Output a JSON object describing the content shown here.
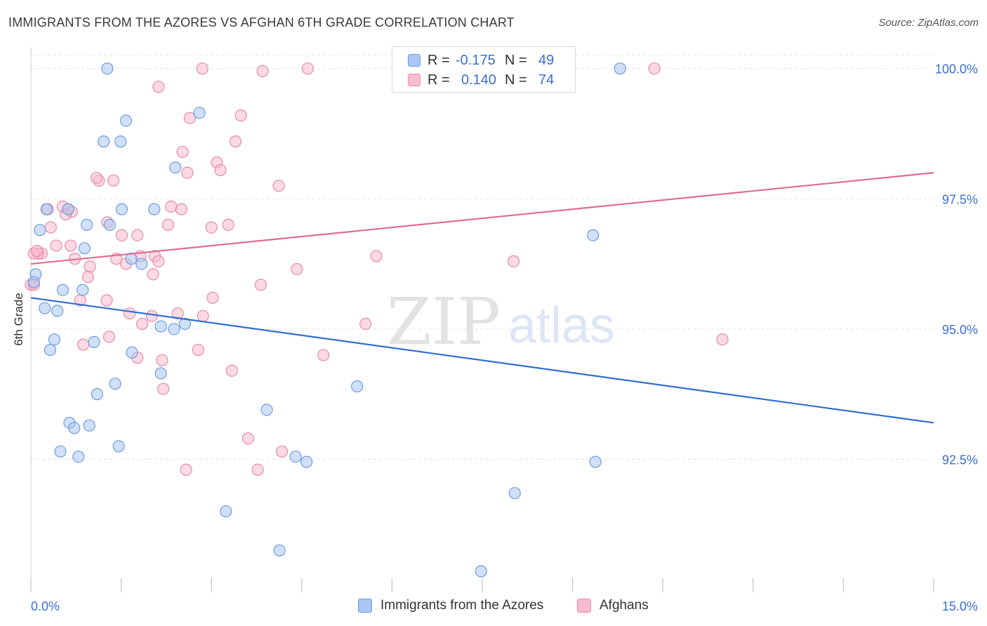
{
  "header": {
    "title": "IMMIGRANTS FROM THE AZORES VS AFGHAN 6TH GRADE CORRELATION CHART",
    "source": "Source: ZipAtlas.com"
  },
  "watermark": {
    "zip": "ZIP",
    "atlas": "atlas"
  },
  "legend": {
    "rows": [
      {
        "r_label": "R =",
        "r_value": "-0.175",
        "n_label": "N =",
        "n_value": "49",
        "color": "#a9c7f2",
        "border": "#6f9be0"
      },
      {
        "r_label": "R =",
        "r_value": "0.140",
        "n_label": "N =",
        "n_value": "74",
        "color": "#f7bccd",
        "border": "#e88aa8"
      }
    ],
    "bottom": [
      {
        "label": "Immigrants from the Azores",
        "color": "#a9c7f2",
        "border": "#6f9be0"
      },
      {
        "label": "Afghans",
        "color": "#f7bccd",
        "border": "#e88aa8"
      }
    ]
  },
  "chart_data": {
    "type": "scatter",
    "title": "IMMIGRANTS FROM THE AZORES VS AFGHAN 6TH GRADE CORRELATION CHART",
    "xlabel": "",
    "ylabel": "6th Grade",
    "xlim": [
      0,
      15
    ],
    "ylim": [
      90.0,
      100.4
    ],
    "x_tick_labels": [
      "0.0%",
      "15.0%"
    ],
    "y_ticks": [
      92.5,
      95.0,
      97.5,
      100.0
    ],
    "y_tick_labels": [
      "92.5%",
      "95.0%",
      "97.5%",
      "100.0%"
    ],
    "grid": true,
    "series": [
      {
        "name": "Immigrants from the Azores",
        "color": "#a9c7f2",
        "edge": "#6f9be0",
        "line_color": "#2f6fd0",
        "trend": {
          "x": [
            0.0,
            15.0
          ],
          "y": [
            95.6,
            93.2
          ]
        },
        "points": [
          [
            1.27,
            100.0
          ],
          [
            9.79,
            100.0
          ],
          [
            1.58,
            99.0
          ],
          [
            2.8,
            99.15
          ],
          [
            1.21,
            98.6
          ],
          [
            1.49,
            98.6
          ],
          [
            2.4,
            98.1
          ],
          [
            0.26,
            97.3
          ],
          [
            0.62,
            97.3
          ],
          [
            1.51,
            97.3
          ],
          [
            2.05,
            97.3
          ],
          [
            0.93,
            97.0
          ],
          [
            1.31,
            97.0
          ],
          [
            0.15,
            96.9
          ],
          [
            9.34,
            96.8
          ],
          [
            0.89,
            96.55
          ],
          [
            1.67,
            96.35
          ],
          [
            1.84,
            96.25
          ],
          [
            0.08,
            96.05
          ],
          [
            0.05,
            95.9
          ],
          [
            0.53,
            95.75
          ],
          [
            0.86,
            95.75
          ],
          [
            0.23,
            95.4
          ],
          [
            0.44,
            95.35
          ],
          [
            2.56,
            95.1
          ],
          [
            2.16,
            95.05
          ],
          [
            2.38,
            95.0
          ],
          [
            0.39,
            94.8
          ],
          [
            1.05,
            94.75
          ],
          [
            0.32,
            94.6
          ],
          [
            1.68,
            94.55
          ],
          [
            2.16,
            94.15
          ],
          [
            1.4,
            93.95
          ],
          [
            1.1,
            93.75
          ],
          [
            5.42,
            93.9
          ],
          [
            3.92,
            93.45
          ],
          [
            0.64,
            93.2
          ],
          [
            0.72,
            93.1
          ],
          [
            0.97,
            93.15
          ],
          [
            1.46,
            92.75
          ],
          [
            0.49,
            92.65
          ],
          [
            0.79,
            92.55
          ],
          [
            4.4,
            92.55
          ],
          [
            4.58,
            92.45
          ],
          [
            9.38,
            92.45
          ],
          [
            8.04,
            91.85
          ],
          [
            3.24,
            91.5
          ],
          [
            4.13,
            90.75
          ],
          [
            7.48,
            90.35
          ]
        ]
      },
      {
        "name": "Afghans",
        "color": "#f7bccd",
        "edge": "#e88aa8",
        "line_color": "#e06b98",
        "trend": {
          "x": [
            0.0,
            15.0
          ],
          "y": [
            96.25,
            98.0
          ]
        },
        "points": [
          [
            2.85,
            100.0
          ],
          [
            3.85,
            99.95
          ],
          [
            4.6,
            100.0
          ],
          [
            6.88,
            100.0
          ],
          [
            10.36,
            100.0
          ],
          [
            2.12,
            99.65
          ],
          [
            3.49,
            99.1
          ],
          [
            2.64,
            99.05
          ],
          [
            3.4,
            98.6
          ],
          [
            2.52,
            98.4
          ],
          [
            3.09,
            98.2
          ],
          [
            2.6,
            98.0
          ],
          [
            3.15,
            98.05
          ],
          [
            1.13,
            97.85
          ],
          [
            1.37,
            97.85
          ],
          [
            1.09,
            97.9
          ],
          [
            4.12,
            97.75
          ],
          [
            0.28,
            97.3
          ],
          [
            0.53,
            97.35
          ],
          [
            0.62,
            97.3
          ],
          [
            0.68,
            97.25
          ],
          [
            2.33,
            97.35
          ],
          [
            2.5,
            97.3
          ],
          [
            0.58,
            97.2
          ],
          [
            1.27,
            97.05
          ],
          [
            2.28,
            97.0
          ],
          [
            3.28,
            97.0
          ],
          [
            3.0,
            96.95
          ],
          [
            0.33,
            96.95
          ],
          [
            1.51,
            96.8
          ],
          [
            1.77,
            96.8
          ],
          [
            0.42,
            96.6
          ],
          [
            0.66,
            96.6
          ],
          [
            0.18,
            96.45
          ],
          [
            0.12,
            96.45
          ],
          [
            1.82,
            96.4
          ],
          [
            2.06,
            96.4
          ],
          [
            5.74,
            96.4
          ],
          [
            0.73,
            96.35
          ],
          [
            1.42,
            96.35
          ],
          [
            1.58,
            96.25
          ],
          [
            2.12,
            96.3
          ],
          [
            8.02,
            96.3
          ],
          [
            0.98,
            96.2
          ],
          [
            4.42,
            96.15
          ],
          [
            0.95,
            96.0
          ],
          [
            2.03,
            96.05
          ],
          [
            0.0,
            95.85
          ],
          [
            3.82,
            95.85
          ],
          [
            3.02,
            95.6
          ],
          [
            1.26,
            95.55
          ],
          [
            0.82,
            95.55
          ],
          [
            1.64,
            95.3
          ],
          [
            2.01,
            95.25
          ],
          [
            2.44,
            95.3
          ],
          [
            2.86,
            95.25
          ],
          [
            1.85,
            95.1
          ],
          [
            5.56,
            95.1
          ],
          [
            1.3,
            94.85
          ],
          [
            11.49,
            94.8
          ],
          [
            0.87,
            94.7
          ],
          [
            2.78,
            94.6
          ],
          [
            4.86,
            94.5
          ],
          [
            1.77,
            94.45
          ],
          [
            2.18,
            94.4
          ],
          [
            3.34,
            94.2
          ],
          [
            2.2,
            93.85
          ],
          [
            3.61,
            92.9
          ],
          [
            4.17,
            92.65
          ],
          [
            2.58,
            92.3
          ],
          [
            3.77,
            92.3
          ],
          [
            0.05,
            96.45
          ],
          [
            0.1,
            96.5
          ],
          [
            0.05,
            95.85
          ]
        ]
      }
    ]
  }
}
